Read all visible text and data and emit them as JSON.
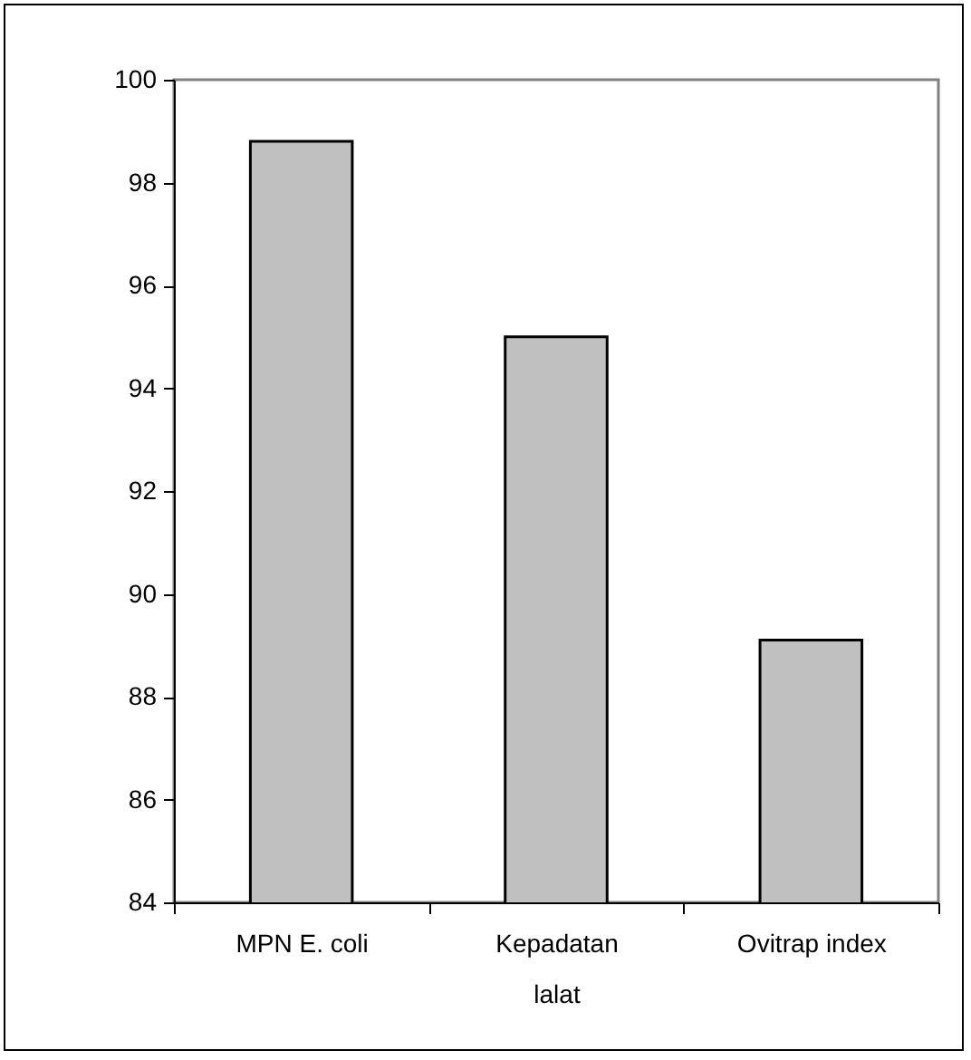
{
  "chart_data": {
    "type": "bar",
    "categories": [
      "MPN E. coli",
      "Kepadatan lalat",
      "Ovitrap index"
    ],
    "values": [
      98.8,
      95.0,
      89.1
    ],
    "color": "#c0c0c0",
    "ylim": [
      84,
      100
    ],
    "yticks": [
      84,
      86,
      88,
      90,
      92,
      94,
      96,
      98,
      100
    ],
    "grid": false
  }
}
